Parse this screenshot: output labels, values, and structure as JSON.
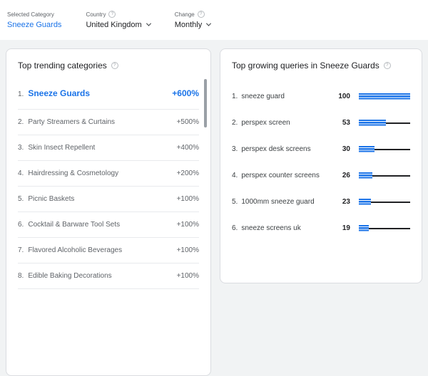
{
  "colors": {
    "accent": "#1a73e8",
    "bar_rest": "#202124",
    "muted_text": "#5f6368"
  },
  "header": {
    "selected_category": {
      "label": "Selected Category",
      "value": "Sneeze Guards"
    },
    "country": {
      "label": "Country",
      "value": "United Kingdom"
    },
    "change": {
      "label": "Change",
      "value": "Monthly"
    }
  },
  "trending": {
    "title": "Top trending categories",
    "items": [
      {
        "rank": "1.",
        "name": "Sneeze Guards",
        "change": "+600%",
        "highlight": true
      },
      {
        "rank": "2.",
        "name": "Party Streamers & Curtains",
        "change": "+500%",
        "highlight": false
      },
      {
        "rank": "3.",
        "name": "Skin Insect Repellent",
        "change": "+400%",
        "highlight": false
      },
      {
        "rank": "4.",
        "name": "Hairdressing & Cosmetology",
        "change": "+200%",
        "highlight": false
      },
      {
        "rank": "5.",
        "name": "Picnic Baskets",
        "change": "+100%",
        "highlight": false
      },
      {
        "rank": "6.",
        "name": "Cocktail & Barware Tool Sets",
        "change": "+100%",
        "highlight": false
      },
      {
        "rank": "7.",
        "name": "Flavored Alcoholic Beverages",
        "change": "+100%",
        "highlight": false
      },
      {
        "rank": "8.",
        "name": "Edible Baking Decorations",
        "change": "+100%",
        "highlight": false
      }
    ]
  },
  "queries": {
    "title": "Top growing queries in Sneeze Guards",
    "max": 100,
    "items": [
      {
        "rank": "1.",
        "name": "sneeze guard",
        "value": 100
      },
      {
        "rank": "2.",
        "name": "perspex screen",
        "value": 53
      },
      {
        "rank": "3.",
        "name": "perspex desk screens",
        "value": 30
      },
      {
        "rank": "4.",
        "name": "perspex counter screens",
        "value": 26
      },
      {
        "rank": "5.",
        "name": "1000mm sneeze guard",
        "value": 23
      },
      {
        "rank": "6.",
        "name": "sneeze screens uk",
        "value": 19
      }
    ]
  },
  "icons": {
    "info": "?"
  }
}
